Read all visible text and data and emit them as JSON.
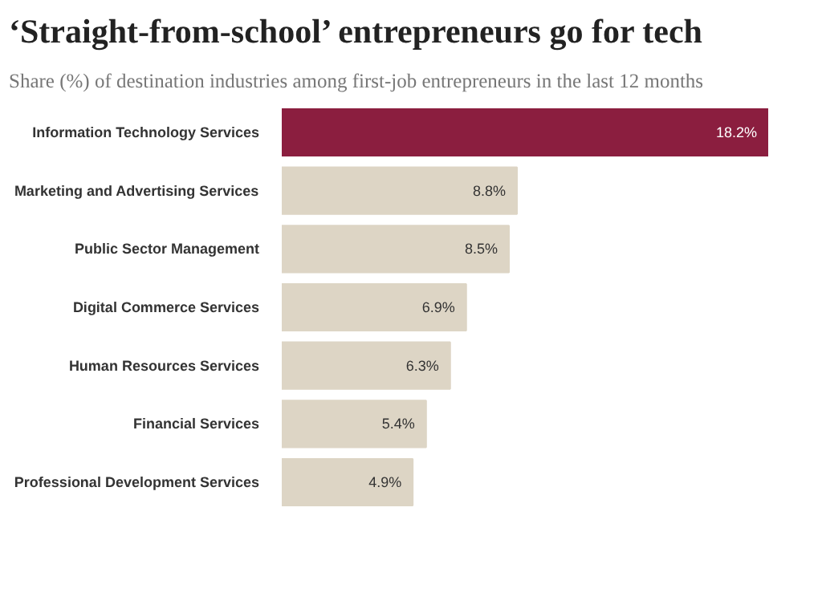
{
  "chart_data": {
    "type": "bar",
    "orientation": "horizontal",
    "title": "‘Straight-from-school’ entrepreneurs go for tech",
    "subtitle": "Share (%) of destination industries among first-job entrepreneurs in the last 12 months",
    "categories": [
      "Information Technology Services",
      "Marketing and Advertising Services",
      "Public Sector Management",
      "Digital Commerce Services",
      "Human Resources Services",
      "Financial Services",
      "Professional Development Services"
    ],
    "values": [
      18.2,
      8.8,
      8.5,
      6.9,
      6.3,
      5.4,
      4.9
    ],
    "value_labels": [
      "18.2%",
      "8.8%",
      "8.5%",
      "6.9%",
      "6.3%",
      "5.4%",
      "4.9%"
    ],
    "colors": [
      "#8b1e3f",
      "#ddd5c5",
      "#ddd5c5",
      "#ddd5c5",
      "#ddd5c5",
      "#ddd5c5",
      "#ddd5c5"
    ]
  }
}
